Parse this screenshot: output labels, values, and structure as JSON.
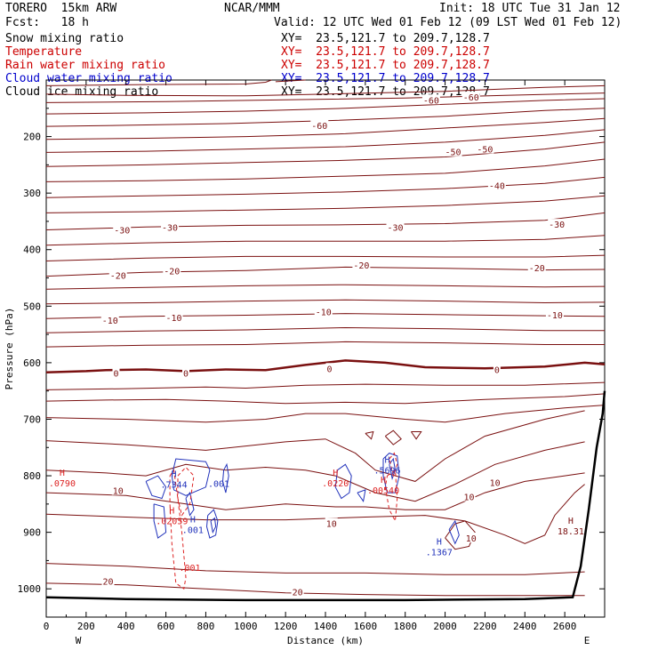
{
  "header": {
    "model": "TORERO  15km ARW",
    "org": "NCAR/MMM",
    "init": "Init: 18 UTC Tue 31 Jan 12",
    "fcst": "Fcst:   18 h",
    "valid": "Valid: 12 UTC Wed 01 Feb 12 (09 LST Wed 01 Feb 12)",
    "fields": [
      {
        "name": "Snow mixing ratio",
        "xy": "XY=  23.5,121.7 to 209.7,128.7",
        "color": "#000000"
      },
      {
        "name": "Temperature",
        "xy": "XY=  23.5,121.7 to 209.7,128.7",
        "color": "#cc0000"
      },
      {
        "name": "Rain water mixing ratio",
        "xy": "XY=  23.5,121.7 to 209.7,128.7",
        "color": "#cc0000"
      },
      {
        "name": "Cloud water mixing ratio",
        "xy": "XY=  23.5,121.7 to 209.7,128.7",
        "color": "#0000cc"
      },
      {
        "name": "Cloud ice mixing ratio",
        "xy": "XY=  23.5,121.7 to 209.7,128.7",
        "color": "#000000"
      }
    ]
  },
  "chart_data": {
    "type": "line",
    "title": "",
    "xlabel": "Distance (km)",
    "ylabel": "Pressure (hPa)",
    "xlim": [
      0,
      2800
    ],
    "ylim": [
      1050,
      100
    ],
    "x_ticks": [
      0,
      200,
      400,
      600,
      800,
      1000,
      1200,
      1400,
      1600,
      1800,
      2000,
      2200,
      2400,
      2600
    ],
    "y_ticks": [
      200,
      300,
      400,
      500,
      600,
      700,
      800,
      900,
      1000
    ],
    "end_labels": {
      "left": "W",
      "right": "E"
    },
    "colors": {
      "temperature": "#7a1010",
      "freezing": "#7a1010",
      "rain": "#dd2222",
      "cloud_water": "#2233bb",
      "terrain": "#000000"
    },
    "temperature_labels": [
      {
        "text": "-60",
        "x": 1930,
        "y": 135
      },
      {
        "text": "-60",
        "x": 2130,
        "y": 130
      },
      {
        "text": "-60",
        "x": 1370,
        "y": 180
      },
      {
        "text": "-50",
        "x": 2040,
        "y": 227
      },
      {
        "text": "-50",
        "x": 2200,
        "y": 222
      },
      {
        "text": "-40",
        "x": 2260,
        "y": 286
      },
      {
        "text": "-30",
        "x": 380,
        "y": 365
      },
      {
        "text": "-30",
        "x": 620,
        "y": 360
      },
      {
        "text": "-30",
        "x": 1750,
        "y": 360
      },
      {
        "text": "-30",
        "x": 2560,
        "y": 355
      },
      {
        "text": "-20",
        "x": 360,
        "y": 445
      },
      {
        "text": "-20",
        "x": 630,
        "y": 437
      },
      {
        "text": "-20",
        "x": 1580,
        "y": 427
      },
      {
        "text": "-20",
        "x": 2460,
        "y": 432
      },
      {
        "text": "-10",
        "x": 320,
        "y": 525
      },
      {
        "text": "-10",
        "x": 640,
        "y": 520
      },
      {
        "text": "-10",
        "x": 1390,
        "y": 510
      },
      {
        "text": "-10",
        "x": 2550,
        "y": 515
      },
      {
        "text": "0",
        "x": 350,
        "y": 618
      },
      {
        "text": "0",
        "x": 700,
        "y": 618
      },
      {
        "text": "0",
        "x": 1420,
        "y": 610
      },
      {
        "text": "0",
        "x": 2260,
        "y": 612
      },
      {
        "text": "10",
        "x": 360,
        "y": 826
      },
      {
        "text": "10",
        "x": 1430,
        "y": 884
      },
      {
        "text": "10",
        "x": 2120,
        "y": 837
      },
      {
        "text": "10",
        "x": 2250,
        "y": 812
      },
      {
        "text": "10",
        "x": 2130,
        "y": 910
      },
      {
        "text": "20",
        "x": 310,
        "y": 986
      },
      {
        "text": "20",
        "x": 1260,
        "y": 1005
      }
    ],
    "extrema": [
      {
        "mark": "H",
        "value": ".0790",
        "x": 80,
        "y": 808,
        "color": "#dd2222"
      },
      {
        "mark": "H",
        "value": ".7344",
        "x": 640,
        "y": 810,
        "color": "#2233bb"
      },
      {
        "mark": "H",
        "value": ".02059",
        "x": 630,
        "y": 875,
        "color": "#dd2222"
      },
      {
        "mark": "H",
        "value": ".001",
        "x": 735,
        "y": 890,
        "color": "#2233bb"
      },
      {
        "mark": "H",
        "value": ".0220",
        "x": 1450,
        "y": 808,
        "color": "#dd2222"
      },
      {
        "mark": "H",
        "value": ".5696",
        "x": 1710,
        "y": 785,
        "color": "#2233bb"
      },
      {
        "mark": "H",
        "value": ".00540",
        "x": 1690,
        "y": 820,
        "color": "#dd2222"
      },
      {
        "mark": "H",
        "value": ".1367",
        "x": 1970,
        "y": 930,
        "color": "#2233bb"
      },
      {
        "mark": "H",
        "value": "18.31",
        "x": 2630,
        "y": 893,
        "color": "#7a1010"
      }
    ],
    "contour_labels": [
      {
        "text": ".001",
        "x": 865,
        "y": 813,
        "color": "#2233bb"
      },
      {
        "text": ".001",
        "x": 720,
        "y": 962,
        "color": "#dd2222"
      }
    ]
  }
}
